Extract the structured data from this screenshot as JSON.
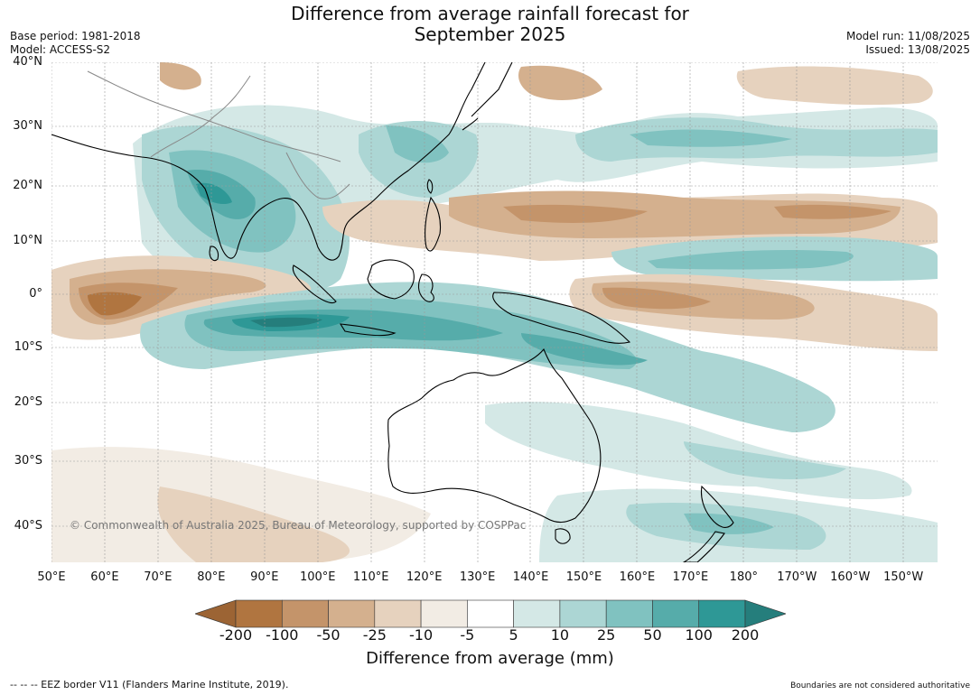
{
  "title": "Difference from average rainfall forecast for\nSeptember 2025",
  "title_line1": "Difference from average rainfall forecast for",
  "title_line2": "September 2025",
  "base_period": "Base period: 1981-2018",
  "model": "Model: ACCESS-S2",
  "model_run": "Model run: 11/08/2025",
  "issued": "Issued: 13/08/2025",
  "copyright": "© Commonwealth of Australia 2025, Bureau of Meteorology, supported by COSPPac",
  "lat_labels": [
    "40°N",
    "30°N",
    "20°N",
    "10°N",
    "0°",
    "10°S",
    "20°S",
    "30°S",
    "40°S"
  ],
  "lon_labels": [
    "50°E",
    "60°E",
    "70°E",
    "80°E",
    "90°E",
    "100°E",
    "110°E",
    "120°E",
    "130°E",
    "140°E",
    "150°E",
    "160°E",
    "170°E",
    "180°",
    "170°W",
    "160°W",
    "150°W"
  ],
  "colorbar": {
    "ticks": [
      "-200",
      "-100",
      "-50",
      "-25",
      "-10",
      "-5",
      "5",
      "10",
      "25",
      "50",
      "100",
      "200"
    ],
    "colors": [
      "#9c6434",
      "#b07540",
      "#c4946a",
      "#d4b08e",
      "#e6d2be",
      "#f2ece4",
      "#ffffff",
      "#d4e8e6",
      "#acd6d4",
      "#80c2c0",
      "#56acaa",
      "#2e9896",
      "#257e7c"
    ],
    "label": "Difference from average (mm)"
  },
  "footer_left": "--  --  -- EEZ border V11 (Flanders Marine Institute, 2019).",
  "footer_right": "Boundaries are not considered authoritative"
}
